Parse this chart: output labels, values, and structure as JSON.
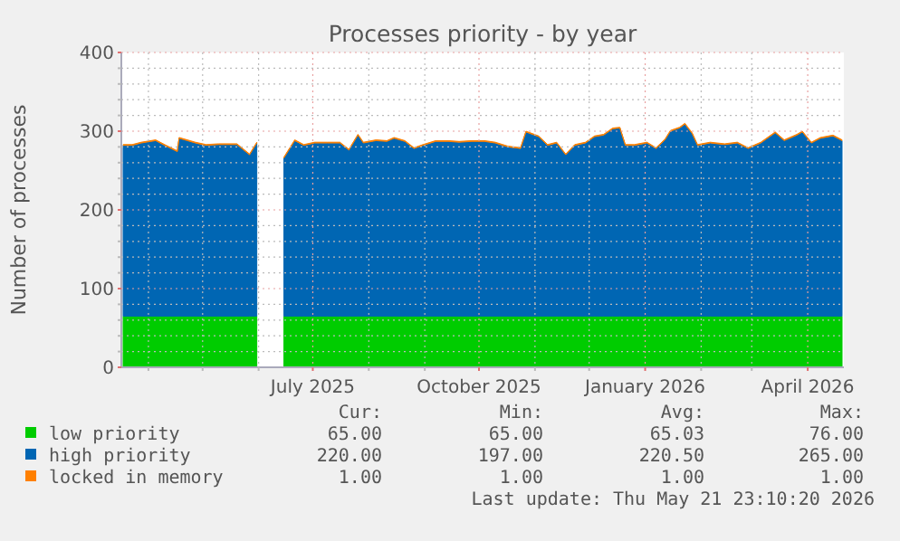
{
  "chart_data": {
    "type": "area",
    "stacked": true,
    "title": "Processes priority - by year",
    "ylabel": "Number of processes",
    "x": [
      "2025-03-18",
      "2025-03-23",
      "2025-03-28",
      "2025-04-05",
      "2025-04-10",
      "2025-04-17",
      "2025-04-18",
      "2025-04-27",
      "2025-05-03",
      "2025-05-10",
      "2025-05-20",
      "2025-05-27",
      "2025-05-31",
      "2025-06-07",
      "2025-06-15",
      "2025-06-21",
      "2025-06-26",
      "2025-07-02",
      "2025-07-09",
      "2025-07-16",
      "2025-07-21",
      "2025-07-26",
      "2025-07-29",
      "2025-08-05",
      "2025-08-11",
      "2025-08-15",
      "2025-08-21",
      "2025-08-26",
      "2025-08-31",
      "2025-09-07",
      "2025-09-14",
      "2025-09-20",
      "2025-09-27",
      "2025-10-04",
      "2025-10-10",
      "2025-10-17",
      "2025-10-24",
      "2025-10-27",
      "2025-11-03",
      "2025-11-08",
      "2025-11-13",
      "2025-11-18",
      "2025-11-23",
      "2025-11-29",
      "2025-12-04",
      "2025-12-09",
      "2025-12-14",
      "2025-12-18",
      "2025-12-21",
      "2025-12-26",
      "2026-01-02",
      "2026-01-07",
      "2026-01-12",
      "2026-01-15",
      "2026-01-20",
      "2026-01-23",
      "2026-01-27",
      "2026-01-30",
      "2026-02-06",
      "2026-02-14",
      "2026-02-21",
      "2026-02-27",
      "2026-03-06",
      "2026-03-14",
      "2026-03-19",
      "2026-03-26",
      "2026-03-29",
      "2026-04-03",
      "2026-04-08",
      "2026-04-15",
      "2026-04-20"
    ],
    "series": [
      {
        "name": "low priority",
        "color": "#00cc00",
        "values": [
          65,
          65,
          65,
          65,
          65,
          65,
          65,
          65,
          65,
          65,
          65,
          65,
          65,
          null,
          65,
          65,
          65,
          65,
          65,
          65,
          65,
          65,
          65,
          65,
          65,
          65,
          65,
          65,
          65,
          65,
          65,
          65,
          65,
          65,
          65,
          65,
          65,
          65,
          65,
          65,
          65,
          65,
          65,
          65,
          65,
          65,
          65,
          65,
          65,
          65,
          65,
          65,
          65,
          65,
          65,
          65,
          65,
          65,
          65,
          65,
          65,
          65,
          65,
          65,
          65,
          65,
          65,
          65,
          65,
          65,
          65
        ]
      },
      {
        "name": "high priority",
        "color": "#0066b3",
        "values": [
          217,
          217,
          220,
          223,
          217,
          209,
          226,
          220,
          217,
          218,
          218,
          205,
          220,
          null,
          201,
          223,
          217,
          220,
          220,
          220,
          211,
          230,
          220,
          223,
          222,
          226,
          222,
          213,
          217,
          222,
          222,
          221,
          222,
          222,
          220,
          215,
          213,
          234,
          228,
          217,
          220,
          205,
          217,
          220,
          228,
          230,
          238,
          239,
          217,
          217,
          220,
          213,
          224,
          235,
          239,
          244,
          232,
          217,
          220,
          218,
          220,
          213,
          220,
          233,
          223,
          230,
          234,
          220,
          226,
          229,
          223
        ]
      },
      {
        "name": "locked in memory",
        "color": "#ff8000",
        "values": [
          1,
          1,
          1,
          1,
          1,
          1,
          1,
          1,
          1,
          1,
          1,
          1,
          1,
          null,
          1,
          1,
          1,
          1,
          1,
          1,
          1,
          1,
          1,
          1,
          1,
          1,
          1,
          1,
          1,
          1,
          1,
          1,
          1,
          1,
          1,
          1,
          1,
          1,
          1,
          1,
          1,
          1,
          1,
          1,
          1,
          1,
          1,
          1,
          1,
          1,
          1,
          1,
          1,
          1,
          1,
          1,
          1,
          1,
          1,
          1,
          1,
          1,
          1,
          1,
          1,
          1,
          1,
          1,
          1,
          1,
          1
        ]
      }
    ],
    "xlim": [
      "2025-03-17",
      "2026-04-21"
    ],
    "xticks": [
      {
        "value": "2025-04-01",
        "label": null
      },
      {
        "value": "2025-05-01",
        "label": null
      },
      {
        "value": "2025-06-01",
        "label": null
      },
      {
        "value": "2025-07-01",
        "label": "July 2025"
      },
      {
        "value": "2025-08-01",
        "label": null
      },
      {
        "value": "2025-09-01",
        "label": null
      },
      {
        "value": "2025-10-01",
        "label": "October 2025"
      },
      {
        "value": "2025-11-01",
        "label": null
      },
      {
        "value": "2025-12-01",
        "label": null
      },
      {
        "value": "2026-01-01",
        "label": "January 2026"
      },
      {
        "value": "2026-02-01",
        "label": null
      },
      {
        "value": "2026-03-01",
        "label": null
      },
      {
        "value": "2026-04-01",
        "label": "April 2026"
      }
    ],
    "ylim": [
      0,
      400
    ],
    "yticks": [
      0,
      {
        "value": 20,
        "label": null
      },
      {
        "value": 40,
        "label": null
      },
      {
        "value": 60,
        "label": null
      },
      {
        "value": 80,
        "label": null
      },
      100,
      {
        "value": 120,
        "label": null
      },
      {
        "value": 140,
        "label": null
      },
      {
        "value": 160,
        "label": null
      },
      {
        "value": 180,
        "label": null
      },
      200,
      {
        "value": 220,
        "label": null
      },
      {
        "value": 240,
        "label": null
      },
      {
        "value": 260,
        "label": null
      },
      {
        "value": 280,
        "label": null
      },
      300,
      {
        "value": 320,
        "label": null
      },
      {
        "value": 340,
        "label": null
      },
      {
        "value": 360,
        "label": null
      },
      {
        "value": 380,
        "label": null
      },
      400
    ],
    "grid": true,
    "legend": "bottom",
    "annotations": [
      "Cur:",
      "Min:",
      "Avg:",
      "Max:",
      "65.00",
      "65.00",
      "65.03",
      "76.00",
      "220.00",
      "197.00",
      "220.50",
      "265.00",
      "1.00",
      "1.00",
      "1.00",
      "1.00",
      "Last update: Thu May 21 23:10:20 2026"
    ]
  }
}
